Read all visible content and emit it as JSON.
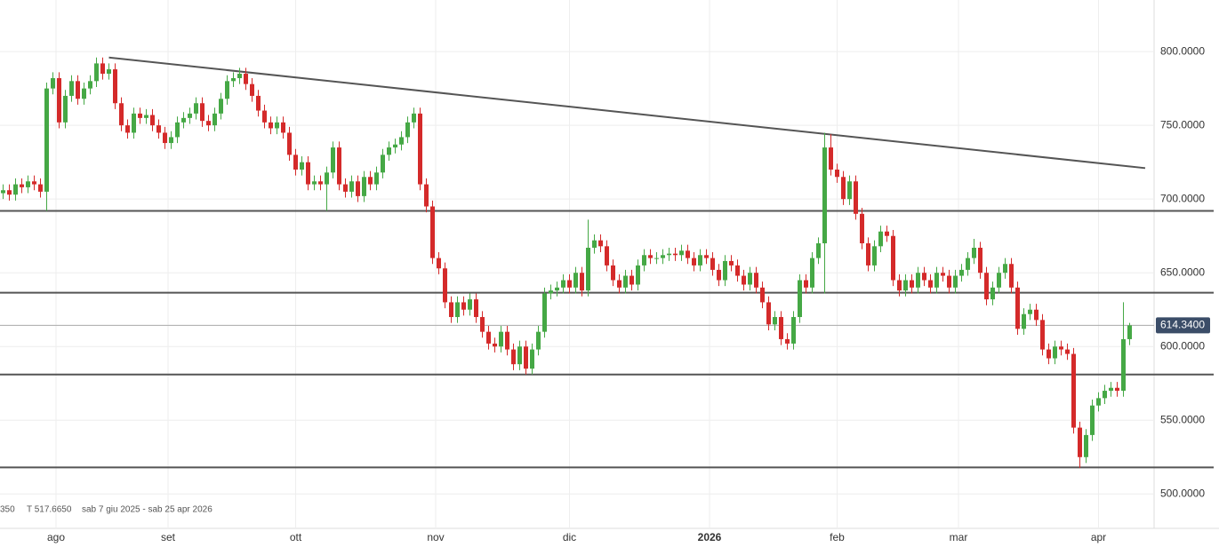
{
  "chart_data": {
    "type": "candlestick",
    "up_color": "#45a845",
    "down_color": "#d42a2a",
    "open": [
      704,
      706,
      703,
      710,
      708,
      712,
      710,
      705,
      775,
      782,
      752,
      770,
      780,
      768,
      775,
      780,
      792,
      785,
      788,
      765,
      750,
      745,
      758,
      755,
      757,
      750,
      745,
      738,
      742,
      752,
      755,
      758,
      765,
      753,
      750,
      758,
      768,
      780,
      782,
      785,
      778,
      770,
      760,
      752,
      748,
      752,
      745,
      730,
      720,
      725,
      710,
      712,
      710,
      718,
      735,
      710,
      705,
      712,
      702,
      715,
      710,
      718,
      730,
      735,
      737,
      742,
      752,
      758,
      710,
      695,
      660,
      653,
      630,
      620,
      630,
      625,
      632,
      620,
      610,
      602,
      600,
      610,
      598,
      588,
      600,
      585,
      598,
      610,
      636,
      638,
      640,
      645,
      640,
      650,
      638,
      667,
      672,
      668,
      655,
      645,
      640,
      648,
      642,
      655,
      662,
      660,
      660,
      662,
      663,
      662,
      665,
      660,
      655,
      662,
      660,
      652,
      645,
      658,
      655,
      648,
      642,
      650,
      640,
      630,
      615,
      620,
      605,
      602,
      620,
      645,
      640,
      660,
      670,
      735,
      720,
      715,
      700,
      712,
      690,
      670,
      655,
      668,
      678,
      675,
      645,
      638,
      645,
      640,
      650,
      645,
      640,
      650,
      648,
      640,
      648,
      652,
      660,
      667,
      650,
      632,
      640,
      650,
      656,
      640,
      612,
      622,
      625,
      618,
      598,
      592,
      600,
      598,
      595,
      545,
      525,
      540,
      560,
      565,
      570,
      572,
      570,
      605
    ],
    "high": [
      710,
      710,
      714,
      714,
      716,
      716,
      714,
      779,
      786,
      786,
      774,
      784,
      784,
      779,
      784,
      796,
      796,
      792,
      792,
      769,
      754,
      762,
      762,
      761,
      761,
      754,
      749,
      746,
      756,
      759,
      762,
      769,
      769,
      757,
      762,
      772,
      784,
      786,
      789,
      789,
      782,
      774,
      764,
      756,
      756,
      756,
      749,
      734,
      729,
      729,
      716,
      716,
      722,
      739,
      739,
      714,
      716,
      716,
      719,
      719,
      722,
      734,
      739,
      741,
      746,
      756,
      762,
      762,
      714,
      699,
      664,
      657,
      634,
      634,
      634,
      636,
      636,
      624,
      614,
      606,
      614,
      614,
      602,
      604,
      604,
      602,
      614,
      640,
      642,
      644,
      649,
      649,
      654,
      654,
      686,
      676,
      676,
      672,
      659,
      649,
      652,
      652,
      659,
      666,
      666,
      664,
      666,
      667,
      667,
      669,
      669,
      664,
      666,
      666,
      664,
      656,
      662,
      662,
      659,
      652,
      654,
      654,
      644,
      634,
      624,
      624,
      609,
      624,
      649,
      649,
      664,
      674,
      745,
      744,
      724,
      719,
      716,
      716,
      694,
      674,
      672,
      682,
      682,
      679,
      649,
      649,
      649,
      654,
      654,
      649,
      654,
      654,
      652,
      652,
      656,
      664,
      673,
      671,
      654,
      644,
      654,
      660,
      660,
      644,
      626,
      629,
      629,
      622,
      602,
      604,
      604,
      602,
      599,
      549,
      544,
      564,
      569,
      574,
      576,
      576,
      630,
      616
    ],
    "low": [
      700,
      699,
      699,
      704,
      704,
      706,
      701,
      692,
      771,
      748,
      748,
      766,
      764,
      764,
      771,
      776,
      781,
      781,
      761,
      746,
      741,
      741,
      751,
      751,
      746,
      741,
      734,
      734,
      738,
      748,
      751,
      754,
      749,
      746,
      746,
      754,
      764,
      776,
      778,
      774,
      766,
      756,
      748,
      744,
      744,
      741,
      726,
      716,
      716,
      706,
      706,
      706,
      692,
      714,
      706,
      701,
      701,
      698,
      698,
      706,
      706,
      714,
      726,
      731,
      733,
      738,
      748,
      706,
      691,
      656,
      649,
      626,
      616,
      616,
      621,
      621,
      616,
      606,
      598,
      596,
      596,
      594,
      584,
      584,
      581,
      581,
      594,
      606,
      632,
      634,
      636,
      636,
      636,
      634,
      634,
      663,
      664,
      651,
      641,
      636,
      636,
      638,
      638,
      651,
      656,
      656,
      656,
      658,
      658,
      658,
      656,
      651,
      651,
      656,
      648,
      641,
      641,
      651,
      644,
      638,
      638,
      636,
      626,
      611,
      611,
      601,
      598,
      598,
      616,
      636,
      636,
      656,
      636,
      716,
      711,
      696,
      696,
      686,
      666,
      651,
      651,
      664,
      671,
      641,
      634,
      634,
      636,
      636,
      641,
      636,
      636,
      644,
      636,
      636,
      644,
      648,
      656,
      646,
      628,
      628,
      636,
      646,
      636,
      608,
      608,
      618,
      614,
      594,
      588,
      588,
      594,
      591,
      541,
      517.665,
      521,
      536,
      556,
      561,
      566,
      566,
      566,
      601
    ],
    "close": [
      706,
      703,
      710,
      708,
      712,
      710,
      705,
      775,
      782,
      752,
      770,
      780,
      768,
      775,
      780,
      792,
      785,
      788,
      765,
      750,
      745,
      758,
      755,
      757,
      750,
      745,
      738,
      742,
      752,
      755,
      758,
      765,
      753,
      750,
      758,
      768,
      780,
      782,
      785,
      778,
      770,
      760,
      752,
      748,
      752,
      745,
      730,
      720,
      725,
      710,
      712,
      710,
      718,
      735,
      710,
      705,
      712,
      702,
      715,
      710,
      718,
      730,
      735,
      737,
      742,
      752,
      758,
      710,
      695,
      660,
      653,
      630,
      620,
      630,
      625,
      632,
      620,
      610,
      602,
      600,
      610,
      598,
      588,
      600,
      585,
      598,
      610,
      636,
      638,
      640,
      645,
      640,
      650,
      638,
      667,
      672,
      668,
      655,
      645,
      640,
      648,
      642,
      655,
      662,
      660,
      660,
      662,
      663,
      662,
      665,
      660,
      655,
      662,
      660,
      652,
      645,
      658,
      655,
      648,
      642,
      650,
      640,
      630,
      615,
      620,
      605,
      602,
      620,
      645,
      640,
      660,
      670,
      735,
      720,
      715,
      700,
      712,
      690,
      670,
      655,
      668,
      678,
      675,
      645,
      638,
      645,
      640,
      650,
      645,
      640,
      650,
      648,
      640,
      648,
      652,
      660,
      667,
      650,
      632,
      640,
      650,
      656,
      640,
      612,
      622,
      625,
      618,
      598,
      592,
      600,
      598,
      595,
      545,
      525,
      540,
      560,
      565,
      570,
      572,
      570,
      605,
      614.34
    ],
    "xlim": [
      -0.5,
      184.5
    ],
    "xticks": [
      {
        "value": 8.5,
        "label": "ago"
      },
      {
        "value": 26.5,
        "label": "set"
      },
      {
        "value": 47,
        "label": "ott"
      },
      {
        "value": 69.5,
        "label": "nov"
      },
      {
        "value": 91,
        "label": "dic"
      },
      {
        "value": 113.5,
        "label": "2026",
        "bold": true
      },
      {
        "value": 134,
        "label": "feb"
      },
      {
        "value": 153.5,
        "label": "mar"
      },
      {
        "value": 176,
        "label": "apr"
      }
    ],
    "ylim": [
      476.7,
      835
    ],
    "yticks": [
      {
        "value": 500,
        "label": "500.0000"
      },
      {
        "value": 550,
        "label": "550.0000"
      },
      {
        "value": 600,
        "label": "600.0000"
      },
      {
        "value": 650,
        "label": "650.0000"
      },
      {
        "value": 700,
        "label": "700.0000"
      },
      {
        "value": 750,
        "label": "750.0000"
      },
      {
        "value": 800,
        "label": "800.0000"
      }
    ],
    "grid": true,
    "hlines": [
      692,
      636.5,
      581,
      518
    ],
    "trendline": {
      "x": [
        17,
        183.5
      ],
      "y": [
        796,
        721
      ]
    },
    "last_price": {
      "value": 614.34,
      "label": "614.3400"
    },
    "info": [
      "350",
      "T 517.6650",
      "sab 7 giu 2025 - sab 25 apr 2026"
    ]
  }
}
